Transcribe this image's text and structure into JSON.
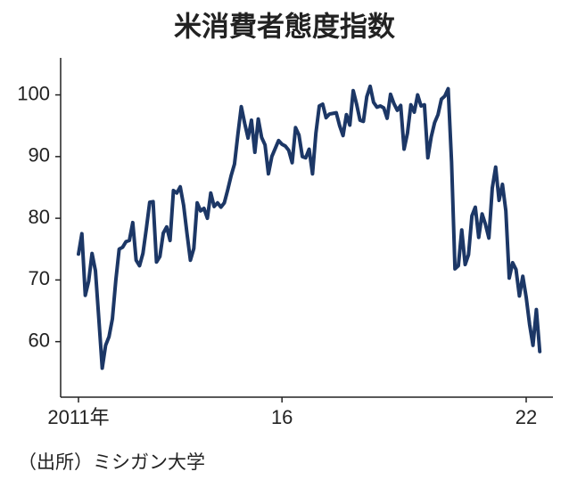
{
  "chart_data": {
    "type": "line",
    "title": "米消費者態度指数",
    "source": "（出所）ミシガン大学",
    "categories": [
      "2011年",
      null,
      null,
      null,
      null,
      null,
      null,
      null,
      null,
      null,
      null,
      null,
      null,
      null,
      null,
      null,
      null,
      null,
      null,
      null,
      null,
      null,
      null,
      null,
      null,
      null,
      null,
      null,
      null,
      null,
      null,
      null,
      null,
      null,
      null,
      null,
      null,
      null,
      null,
      null,
      null,
      null,
      null,
      null,
      null,
      null,
      null,
      null,
      null,
      null,
      null,
      null,
      null,
      null,
      null,
      null,
      null,
      null,
      null,
      null,
      "16",
      null,
      null,
      null,
      null,
      null,
      null,
      null,
      null,
      null,
      null,
      null,
      null,
      null,
      null,
      null,
      null,
      null,
      null,
      null,
      null,
      null,
      null,
      null,
      null,
      null,
      null,
      null,
      null,
      null,
      null,
      null,
      null,
      null,
      null,
      null,
      null,
      null,
      null,
      null,
      null,
      null,
      null,
      null,
      null,
      null,
      null,
      null,
      null,
      null,
      null,
      null,
      null,
      null,
      null,
      null,
      null,
      null,
      null,
      null,
      null,
      null,
      null,
      null,
      null,
      null,
      null,
      null,
      null,
      null,
      null,
      null,
      "22",
      null,
      null,
      null,
      null
    ],
    "values": [
      74.2,
      77.5,
      67.5,
      69.8,
      74.3,
      71.5,
      63.7,
      55.7,
      59.4,
      60.8,
      63.7,
      69.9,
      75.0,
      75.3,
      76.2,
      76.4,
      79.3,
      73.2,
      72.3,
      74.3,
      78.3,
      82.6,
      82.7,
      72.9,
      73.8,
      77.6,
      78.6,
      76.4,
      84.5,
      84.1,
      85.1,
      82.1,
      77.5,
      73.2,
      75.1,
      82.5,
      81.2,
      81.6,
      80.0,
      84.1,
      81.9,
      82.5,
      81.8,
      82.5,
      84.6,
      86.9,
      88.8,
      93.6,
      98.1,
      95.4,
      93.0,
      95.9,
      90.7,
      96.1,
      93.1,
      91.9,
      87.2,
      90.0,
      91.3,
      92.6,
      92.0,
      91.7,
      91.0,
      89.0,
      94.7,
      93.5,
      90.0,
      89.8,
      91.2,
      87.2,
      93.8,
      98.2,
      98.5,
      96.3,
      96.9,
      97.0,
      97.1,
      95.0,
      93.4,
      96.8,
      95.1,
      100.7,
      98.5,
      95.9,
      95.7,
      99.7,
      101.4,
      98.8,
      98.0,
      98.2,
      97.9,
      96.2,
      100.1,
      98.6,
      97.5,
      98.3,
      91.2,
      93.8,
      98.4,
      97.2,
      100.0,
      98.2,
      98.4,
      89.8,
      93.2,
      95.5,
      96.8,
      99.3,
      99.8,
      101.0,
      89.1,
      71.8,
      72.3,
      78.1,
      72.5,
      74.1,
      80.4,
      81.8,
      76.9,
      80.7,
      79.0,
      76.8,
      84.9,
      88.3,
      82.9,
      85.5,
      81.2,
      70.3,
      72.8,
      71.7,
      67.4,
      70.6,
      67.2,
      62.8,
      59.4,
      65.2,
      58.4
    ],
    "color": "#1c3766",
    "ylim": [
      51,
      106
    ],
    "yticks": [
      60,
      70,
      80,
      90,
      100
    ]
  }
}
